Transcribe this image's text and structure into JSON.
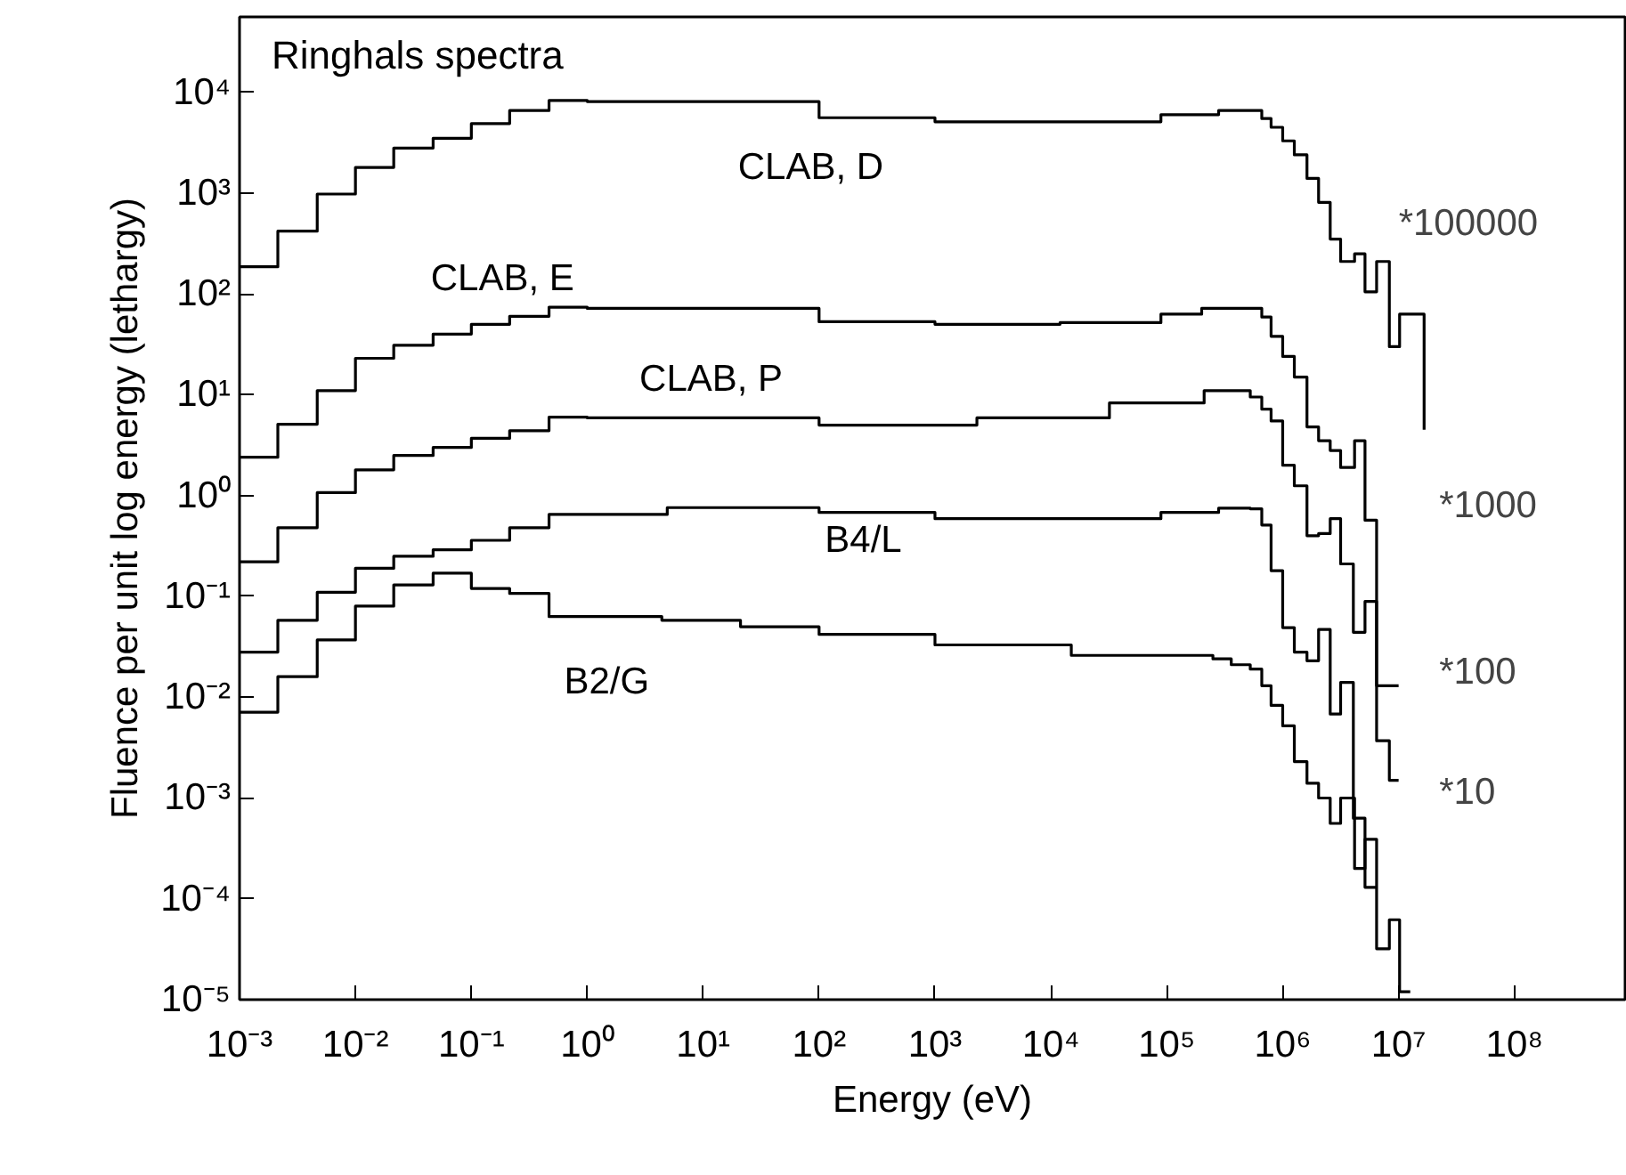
{
  "chart_data": {
    "type": "step",
    "title": "Ringhals spectra",
    "xlabel": "Energy (eV)",
    "ylabel": "Fluence per unit log energy (lethargy)",
    "log": "xy",
    "grid": false,
    "xlim": [
      0.001,
      900000000
    ],
    "ylim": [
      1e-05,
      56000
    ],
    "xticks": [
      {
        "value": 0.001,
        "label": "10⁻³"
      },
      {
        "value": 0.01,
        "label": "10⁻²"
      },
      {
        "value": 0.1,
        "label": "10⁻¹"
      },
      {
        "value": 1,
        "label": "10⁰"
      },
      {
        "value": 10,
        "label": "10¹"
      },
      {
        "value": 100,
        "label": "10²"
      },
      {
        "value": 1000,
        "label": "10³"
      },
      {
        "value": 10000,
        "label": "10⁴"
      },
      {
        "value": 100000,
        "label": "10⁵"
      },
      {
        "value": 1000000,
        "label": "10⁶"
      },
      {
        "value": 10000000,
        "label": "10⁷"
      },
      {
        "value": 100000000,
        "label": "10⁸"
      }
    ],
    "yticks": [
      {
        "value": 1e-05,
        "label": "10⁻⁵"
      },
      {
        "value": 0.0001,
        "label": "10⁻⁴"
      },
      {
        "value": 0.001,
        "label": "10⁻³"
      },
      {
        "value": 0.01,
        "label": "10⁻²"
      },
      {
        "value": 0.1,
        "label": "10⁻¹"
      },
      {
        "value": 1,
        "label": "10⁰"
      },
      {
        "value": 10,
        "label": "10¹"
      },
      {
        "value": 100,
        "label": "10²"
      },
      {
        "value": 1000,
        "label": "10³"
      },
      {
        "value": 10000,
        "label": "10⁴"
      }
    ],
    "annotations": [
      "*100000",
      "*1000",
      "*100",
      "*10"
    ],
    "series": [
      {
        "name": "CLAB, D",
        "color": "#000000",
        "x": [
          0.001,
          0.00214,
          0.00468,
          0.01,
          0.0214,
          0.0468,
          0.1,
          0.214,
          0.468,
          1,
          100,
          1000,
          12000,
          89000,
          280000,
          525000,
          660000,
          794000,
          1000000,
          1260000,
          1620000,
          2040000,
          2570000,
          3160000,
          4170000,
          5130000,
          6460000,
          8320000,
          10200000,
          16600000
        ],
        "values": [
          186,
          420,
          980,
          1800,
          2800,
          3500,
          4900,
          6600,
          8300,
          8100,
          5600,
          5100,
          5100,
          6000,
          6600,
          6600,
          5500,
          4500,
          3300,
          2400,
          1400,
          810,
          350,
          210,
          250,
          105,
          210,
          30,
          63,
          4.5
        ]
      },
      {
        "name": "CLAB, E",
        "color": "#000000",
        "x": [
          0.001,
          0.00214,
          0.00468,
          0.01,
          0.0214,
          0.0468,
          0.1,
          0.214,
          0.468,
          1,
          100,
          1000,
          12000,
          89000,
          200000,
          525000,
          660000,
          794000,
          1000000,
          1260000,
          1620000,
          2040000,
          2570000,
          3160000,
          4170000,
          5130000,
          6460000,
          10000000
        ],
        "values": [
          2.4,
          5.1,
          11,
          23,
          31,
          40,
          50,
          60,
          74,
          72,
          53,
          50,
          52,
          63,
          72,
          72,
          59,
          38,
          24,
          15,
          4.8,
          3.5,
          2.8,
          1.9,
          3.5,
          0.57,
          0.013,
          0.013
        ]
      },
      {
        "name": "CLAB, P",
        "color": "#000000",
        "x": [
          0.001,
          0.00214,
          0.00468,
          0.01,
          0.0214,
          0.0468,
          0.1,
          0.214,
          0.468,
          1,
          100,
          500,
          2300,
          32000,
          210000,
          440000,
          525000,
          660000,
          794000,
          1000000,
          1260000,
          1620000,
          2040000,
          2570000,
          3160000,
          4070000,
          5130000,
          6460000,
          8320000,
          10000000
        ],
        "values": [
          0.22,
          0.48,
          1.07,
          1.8,
          2.5,
          3.0,
          3.7,
          4.4,
          6.0,
          5.9,
          5.0,
          5.0,
          5.9,
          8.3,
          11,
          11,
          9.5,
          7.2,
          5.5,
          2.0,
          1.25,
          0.4,
          0.42,
          0.59,
          0.21,
          0.044,
          0.089,
          0.0037,
          0.0015,
          0.0015
        ]
      },
      {
        "name": "B4/L",
        "color": "#000000",
        "x": [
          0.001,
          0.00214,
          0.00468,
          0.01,
          0.0214,
          0.0468,
          0.1,
          0.214,
          0.468,
          1,
          4.9,
          100,
          1000,
          15000,
          89000,
          280000,
          525000,
          660000,
          794000,
          1000000,
          1260000,
          1620000,
          2040000,
          2570000,
          3160000,
          4070000,
          5130000,
          6460000
        ],
        "values": [
          0.028,
          0.058,
          0.11,
          0.19,
          0.25,
          0.29,
          0.36,
          0.48,
          0.65,
          0.65,
          0.76,
          0.68,
          0.59,
          0.59,
          0.68,
          0.75,
          0.74,
          0.51,
          0.18,
          0.049,
          0.028,
          0.023,
          0.047,
          0.0068,
          0.014,
          0.00063,
          0.00013,
          0.00013
        ]
      },
      {
        "name": "B2/G",
        "color": "#000000",
        "x": [
          0.001,
          0.00214,
          0.00468,
          0.01,
          0.0214,
          0.0468,
          0.1,
          0.214,
          0.468,
          4.4,
          21,
          100,
          1000,
          15000,
          250000,
          360000,
          525000,
          660000,
          794000,
          1000000,
          1260000,
          1620000,
          2040000,
          2570000,
          3160000,
          4170000,
          5130000,
          6460000,
          8320000,
          10200000,
          12600000
        ],
        "values": [
          0.0071,
          0.016,
          0.037,
          0.08,
          0.13,
          0.17,
          0.12,
          0.107,
          0.063,
          0.058,
          0.05,
          0.042,
          0.033,
          0.026,
          0.024,
          0.021,
          0.019,
          0.013,
          0.0083,
          0.0052,
          0.0023,
          0.0014,
          0.001,
          0.00056,
          0.001,
          0.0002,
          0.00039,
          3.2e-05,
          6.2e-05,
          1.2e-05,
          1.2e-05
        ]
      }
    ]
  }
}
